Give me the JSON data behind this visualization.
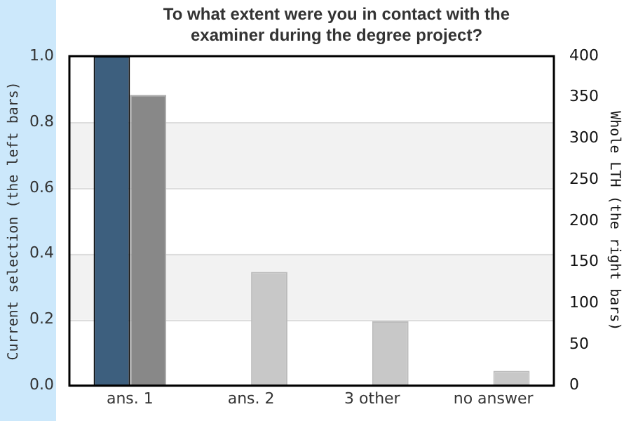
{
  "chart_data": {
    "type": "bar",
    "title": "To what extent were you in contact with the examiner during the degree project?",
    "ylabel": "Current selection (the left bars)",
    "y2label": "Whole LTH (the right bars)",
    "categories": [
      "ans. 1",
      "ans. 2",
      "3 other",
      "no answer"
    ],
    "series": [
      {
        "color": "#3d5f7e",
        "values": [
          1.0,
          0,
          0,
          0
        ]
      },
      {
        "colors": [
          "#888888",
          "#c8c8c8",
          "#c8c8c8",
          "#c8c8c8"
        ],
        "values": [
          353,
          138,
          78,
          18
        ],
        "axis": "y2"
      }
    ],
    "ylim": [
      0,
      1
    ],
    "yticks": [
      {
        "value": 0,
        "label": "0.0"
      },
      {
        "value": 0.2,
        "label": "0.2"
      },
      {
        "value": 0.4,
        "label": "0.4"
      },
      {
        "value": 0.6,
        "label": "0.6"
      },
      {
        "value": 0.8,
        "label": "0.8"
      },
      {
        "value": 1,
        "label": "1.0"
      }
    ],
    "y2lim": [
      0,
      400
    ],
    "y2ticks": [
      0,
      50,
      100,
      150,
      200,
      250,
      300,
      350,
      400
    ],
    "bands": [
      {
        "axis": "y",
        "from": 0.2,
        "to": 0.4,
        "color": "#f2f2f2"
      },
      {
        "axis": "y",
        "from": 0.6,
        "to": 0.8,
        "color": "#f2f2f2"
      }
    ],
    "grid": "y",
    "legend": false
  }
}
